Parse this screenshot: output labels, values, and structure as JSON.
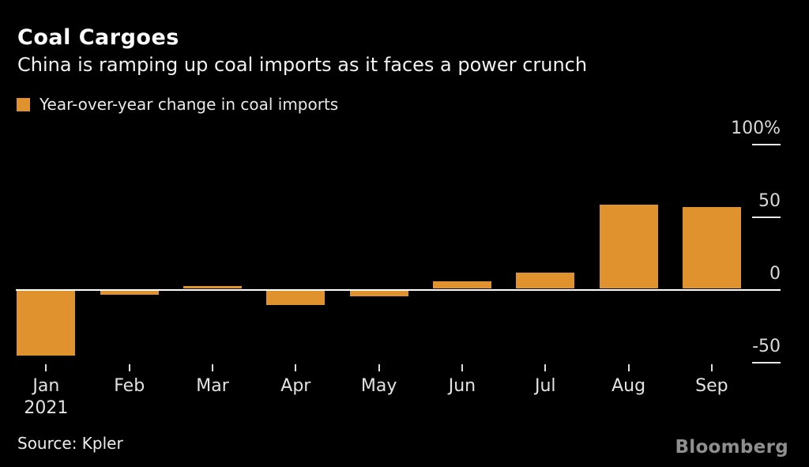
{
  "chart_data": {
    "type": "bar",
    "title": "Coal Cargoes",
    "subtitle": "China is ramping up coal imports as it faces a power crunch",
    "legend": [
      {
        "label": "Year-over-year change in coal imports",
        "color": "#E0922F"
      }
    ],
    "legend_position": "top-left",
    "categories": [
      "Jan",
      "Feb",
      "Mar",
      "Apr",
      "May",
      "Jun",
      "Jul",
      "Aug",
      "Sep"
    ],
    "x_axis_year": {
      "text": "2021",
      "under_category": "Jan"
    },
    "values": [
      -45,
      -3,
      2,
      -10,
      -4,
      5,
      11,
      58,
      56
    ],
    "unit": "%",
    "ylim": [
      -60,
      100
    ],
    "yticks": [
      {
        "label": "100%",
        "value": 100
      },
      {
        "label": "50",
        "value": 50
      },
      {
        "label": "0",
        "value": 0
      },
      {
        "label": "-50",
        "value": -50
      }
    ],
    "grid": "right-side short ticks, zero baseline across plot",
    "bar_color": "#E0922F",
    "baseline_color": "#FFFFFF",
    "background_color": "#000000"
  },
  "footer": {
    "source": "Source: Kpler",
    "brand": "Bloomberg"
  }
}
